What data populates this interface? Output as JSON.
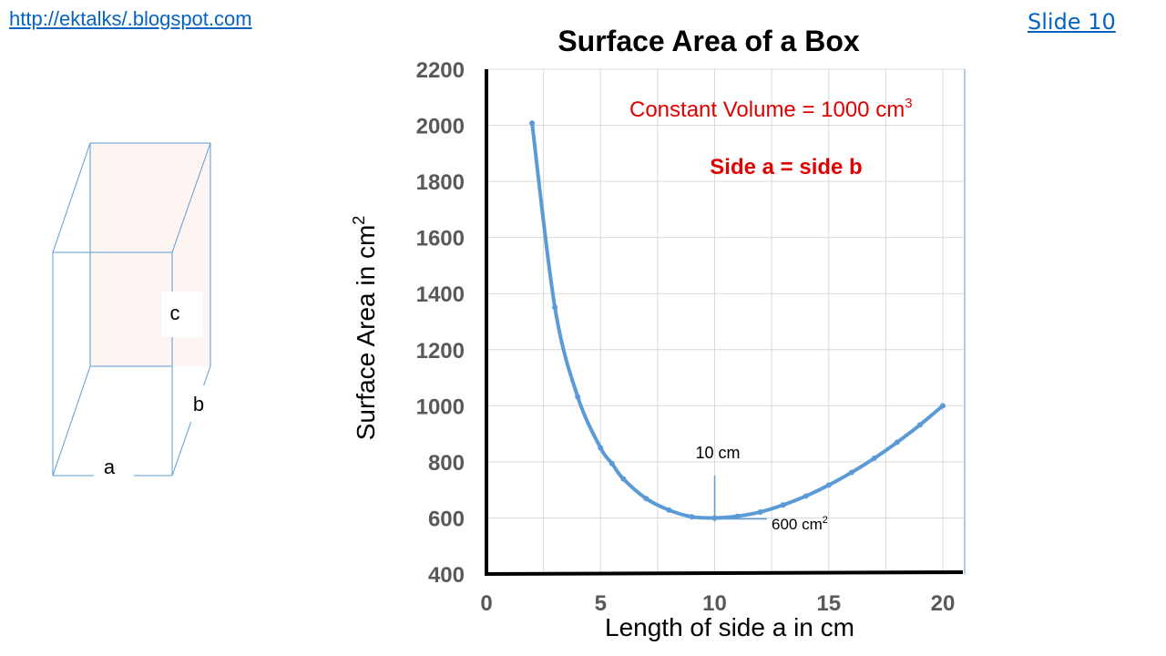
{
  "header": {
    "blog_link": "http://ektalks/.blogspot.com",
    "slide_link": "Slide 10"
  },
  "box_diagram": {
    "label_a": "a",
    "label_b": "b",
    "label_c": "c"
  },
  "colors": {
    "curve": "#5b9bd5",
    "annotation_red": "#e00000",
    "link": "#0563c1",
    "box_face": "#fdf5f2",
    "box_line": "#5b9bd5"
  },
  "chart_data": {
    "type": "line",
    "title": "Surface Area of a Box",
    "xlabel": "Length of side a in cm",
    "ylabel": "Surface Area in cm",
    "ylabel_sup": "2",
    "xlim": [
      0,
      20
    ],
    "ylim": [
      400,
      2200
    ],
    "x_ticks": [
      "0",
      "5",
      "10",
      "15",
      "20"
    ],
    "y_ticks": [
      "400",
      "600",
      "800",
      "1000",
      "1200",
      "1400",
      "1600",
      "1800",
      "2000",
      "2200"
    ],
    "grid": true,
    "annotations": {
      "volume_text": "Constant Volume = 1000 cm",
      "volume_sup": "3",
      "side_text": "Side a = side b",
      "min_x_label": "10 cm",
      "min_y_label": "600 cm",
      "min_y_sup": "2"
    },
    "series": [
      {
        "x": [
          2,
          3,
          4,
          5,
          5.5,
          6,
          7,
          8,
          9,
          10,
          11,
          12,
          13,
          14,
          15,
          16,
          17,
          18,
          19,
          20
        ],
        "y": [
          2008,
          1351,
          1032,
          850,
          794,
          739,
          669,
          628,
          604,
          600,
          606,
          621,
          646,
          678,
          717,
          762,
          813,
          870,
          932,
          1000
        ]
      }
    ]
  }
}
